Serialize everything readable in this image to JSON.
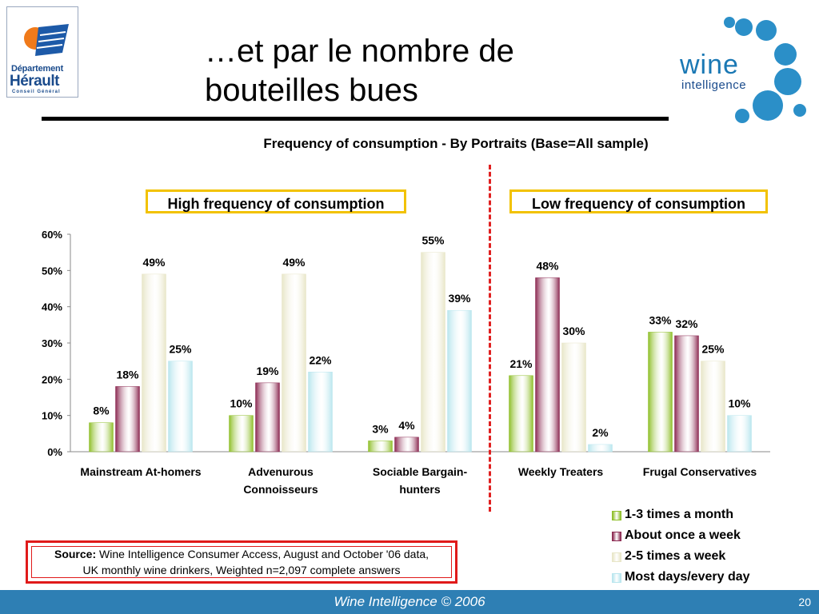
{
  "header": {
    "title_line1": "…et par le nombre de",
    "title_line2": "bouteilles bues",
    "dept_logo": {
      "line1": "Département",
      "line2": "Hérault",
      "line3": "Conseil Général"
    },
    "wine_logo": {
      "line1": "wine",
      "line2": "intelligence"
    }
  },
  "chart_title": "Frequency of consumption - By Portraits (Base=All sample)",
  "group_labels": {
    "high": "High frequency of consumption",
    "low": "Low frequency of consumption"
  },
  "colors": {
    "series": [
      "#8fbf2a",
      "#8c2a52",
      "#e8e6c8",
      "#b9e6ee"
    ],
    "divider": "#e02020",
    "group_border": "#f2c200",
    "source_border": "#e01a1a",
    "footer": "#2e7fb4"
  },
  "chart_data": {
    "type": "bar",
    "categories": [
      "Mainstream At-homers",
      "Advenurous Connoisseurs",
      "Sociable Bargain-hunters",
      "Weekly Treaters",
      "Frugal Conservatives"
    ],
    "category_lines": [
      [
        "Mainstream At-homers"
      ],
      [
        "Advenurous",
        "Connoisseurs"
      ],
      [
        "Sociable Bargain-",
        "hunters"
      ],
      [
        "Weekly Treaters"
      ],
      [
        "Frugal Conservatives"
      ]
    ],
    "series": [
      {
        "name": "1-3 times a month",
        "values": [
          8,
          10,
          3,
          21,
          33
        ]
      },
      {
        "name": "About once a week",
        "values": [
          18,
          19,
          4,
          48,
          32
        ]
      },
      {
        "name": "2-5 times a week",
        "values": [
          49,
          49,
          55,
          30,
          25
        ]
      },
      {
        "name": "Most days/every day",
        "values": [
          25,
          22,
          39,
          2,
          10
        ]
      }
    ],
    "ylim": [
      0,
      60
    ],
    "yticks": [
      "0%",
      "10%",
      "20%",
      "30%",
      "40%",
      "50%",
      "60%"
    ],
    "unit": "%",
    "legend_position": "bottom-right",
    "grid": false
  },
  "source": {
    "label": "Source:",
    "line1": "Wine Intelligence Consumer Access, August and October '06 data,",
    "line2": "UK monthly wine drinkers, Weighted n=2,097 complete answers"
  },
  "footer": {
    "text": "Wine Intelligence © 2006",
    "page": "20"
  }
}
